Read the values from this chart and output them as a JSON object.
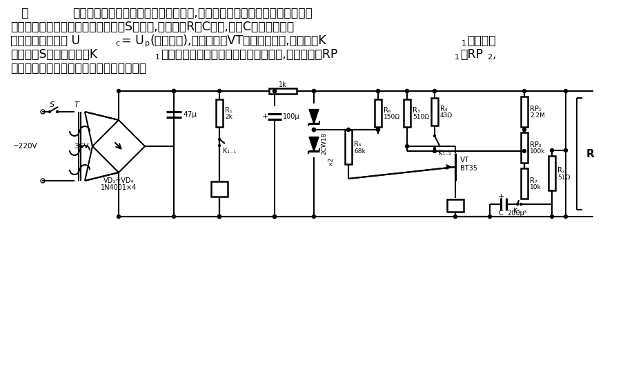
{
  "bg_color": "#ffffff",
  "line_color": "#000000",
  "fig_width": 9.04,
  "fig_height": 5.32,
  "dpi": 100,
  "text_lines": [
    [
      "图",
      30,
      513
    ],
    [
      "是一个由单结晶体管组成的时间继电器,它主要由直流稳压电路和定时电路及",
      105,
      513
    ],
    [
      "执行继电器三部分组成。当电源开关S闭合后,稳压电源R对C充电,电容C上的电压经过",
      15,
      493
    ],
    [
      "一定的时间后会使 Uc = Up(峰值电压),单结晶体管VT此时突然导通,使继电器K1吸合。从",
      15,
      473
    ],
    [
      "电源开关S闭合到继电器K1吸合的这段时间就是继电器的延迟时间,调节电位器RP1和RP2,",
      15,
      453
    ],
    [
      "可使这一时间在几秒钟到十几分钟内变化。",
      15,
      433
    ]
  ],
  "lw": 1.5,
  "clw": 1.8
}
